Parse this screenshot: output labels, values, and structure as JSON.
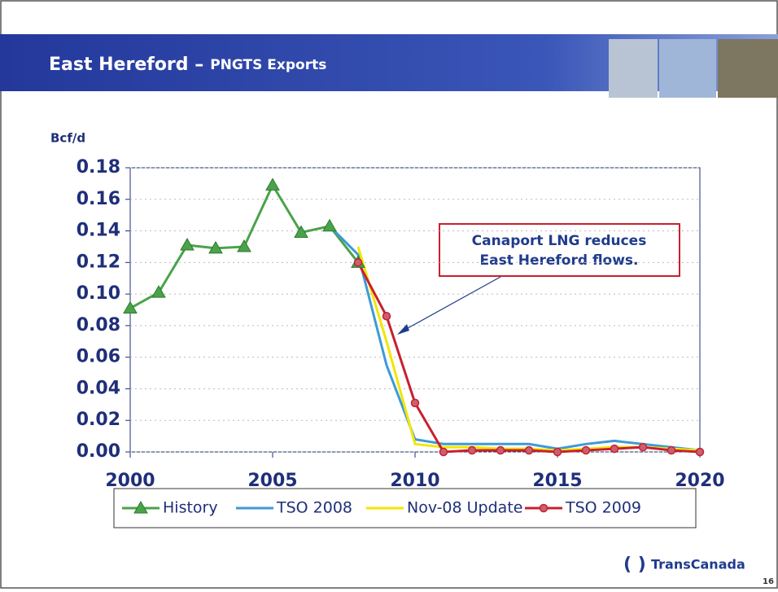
{
  "chart_data": {
    "type": "line",
    "title": "East Hereford –",
    "subtitle": "PNGTS Exports",
    "y_label": "Bcf/d",
    "annotation": [
      "Canaport LNG reduces",
      "East Hereford flows."
    ],
    "x": [
      2000,
      2001,
      2002,
      2003,
      2004,
      2005,
      2006,
      2007,
      2008,
      2009,
      2010,
      2011,
      2012,
      2013,
      2014,
      2015,
      2016,
      2017,
      2018,
      2019,
      2020
    ],
    "series": [
      {
        "name": "History",
        "color": "#4aa34a",
        "marker": "triangle",
        "values": [
          0.091,
          0.101,
          0.131,
          0.129,
          0.13,
          0.169,
          0.139,
          0.143,
          0.12,
          null,
          null,
          null,
          null,
          null,
          null,
          null,
          null,
          null,
          null,
          null,
          null
        ]
      },
      {
        "name": "TSO 2008",
        "color": "#3d9ad6",
        "marker": "none",
        "values": [
          null,
          null,
          null,
          null,
          null,
          null,
          null,
          0.143,
          0.125,
          0.055,
          0.008,
          0.005,
          0.005,
          0.005,
          0.005,
          0.002,
          0.005,
          0.007,
          0.005,
          0.003,
          0.001
        ]
      },
      {
        "name": "Nov-08 Update",
        "color": "#f2e600",
        "marker": "none",
        "values": [
          null,
          null,
          null,
          null,
          null,
          null,
          null,
          null,
          0.13,
          0.07,
          0.005,
          0.003,
          0.003,
          0.002,
          0.002,
          0.001,
          0.002,
          0.003,
          0.003,
          0.002,
          0.001
        ]
      },
      {
        "name": "TSO 2009",
        "color": "#c8202f",
        "marker": "circle",
        "values": [
          null,
          null,
          null,
          null,
          null,
          null,
          null,
          null,
          0.12,
          0.086,
          0.031,
          0.0,
          0.001,
          0.001,
          0.001,
          0.0,
          0.001,
          0.002,
          0.003,
          0.001,
          0.0
        ]
      }
    ],
    "xlim": [
      2000,
      2020
    ],
    "xticks": [
      2000,
      2005,
      2010,
      2015,
      2020
    ],
    "ylim": [
      0,
      0.18
    ],
    "yticks": [
      {
        "value": 0,
        "label": "0.00"
      },
      {
        "value": 0.02,
        "label": "0.02"
      },
      {
        "value": 0.04,
        "label": "0.04"
      },
      {
        "value": 0.06,
        "label": "0.06"
      },
      {
        "value": 0.08,
        "label": "0.08"
      },
      {
        "value": 0.1,
        "label": "0.10"
      },
      {
        "value": 0.12,
        "label": "0.12"
      },
      {
        "value": 0.14,
        "label": "0.14"
      },
      {
        "value": 0.16,
        "label": "0.16"
      },
      {
        "value": 0.18,
        "label": "0.18"
      }
    ],
    "grid": true,
    "legend": "bottom"
  },
  "logo": "TransCanada",
  "page_number": "16"
}
